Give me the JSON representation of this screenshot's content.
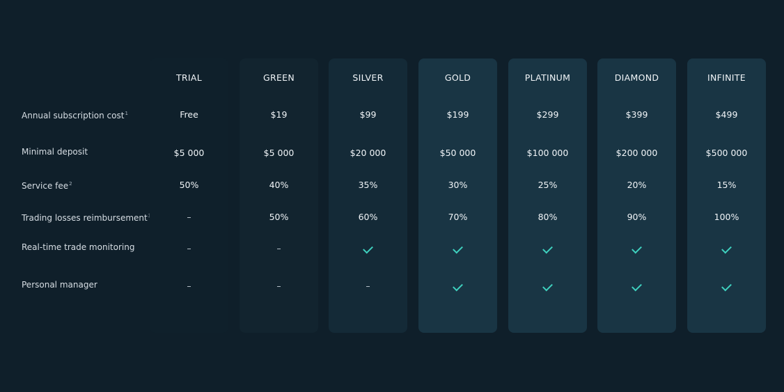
{
  "rows": [
    {
      "label": "Annual subscription cost",
      "sup": "1"
    },
    {
      "label": "Minimal deposit",
      "sup": ""
    },
    {
      "label": "Service fee",
      "sup": "2"
    },
    {
      "label": "Trading losses reimbursement",
      "sup": "3"
    },
    {
      "label": "Real-time trade monitoring",
      "sup": ""
    },
    {
      "label": "Personal manager",
      "sup": ""
    }
  ],
  "plans": [
    {
      "name": "TRIAL",
      "cost": "Free",
      "deposit": "$5 000",
      "fee": "50%",
      "reimbursement": "–",
      "monitoring": "–",
      "manager": "–",
      "bg": "#0f202b"
    },
    {
      "name": "GREEN",
      "cost": "$19",
      "deposit": "$5 000",
      "fee": "40%",
      "reimbursement": "50%",
      "monitoring": "–",
      "manager": "–",
      "bg": "#12242f"
    },
    {
      "name": "SILVER",
      "cost": "$99",
      "deposit": "$20 000",
      "fee": "35%",
      "reimbursement": "60%",
      "monitoring": "check",
      "manager": "–",
      "bg": "#142a37"
    },
    {
      "name": "GOLD",
      "cost": "$199",
      "deposit": "$50 000",
      "fee": "30%",
      "reimbursement": "70%",
      "monitoring": "check",
      "manager": "check",
      "bg": "#193544"
    },
    {
      "name": "PLATINUM",
      "cost": "$299",
      "deposit": "$100 000",
      "fee": "25%",
      "reimbursement": "80%",
      "monitoring": "check",
      "manager": "check",
      "bg": "#193544"
    },
    {
      "name": "DIAMOND",
      "cost": "$399",
      "deposit": "$200 000",
      "fee": "20%",
      "reimbursement": "90%",
      "monitoring": "check",
      "manager": "check",
      "bg": "#193544"
    },
    {
      "name": "INFINITE",
      "cost": "$499",
      "deposit": "$500 000",
      "fee": "15%",
      "reimbursement": "100%",
      "monitoring": "check",
      "manager": "check",
      "bg": "#193544"
    }
  ],
  "colors": {
    "background": "#0f1f2a",
    "check": "#3fd1bf"
  }
}
